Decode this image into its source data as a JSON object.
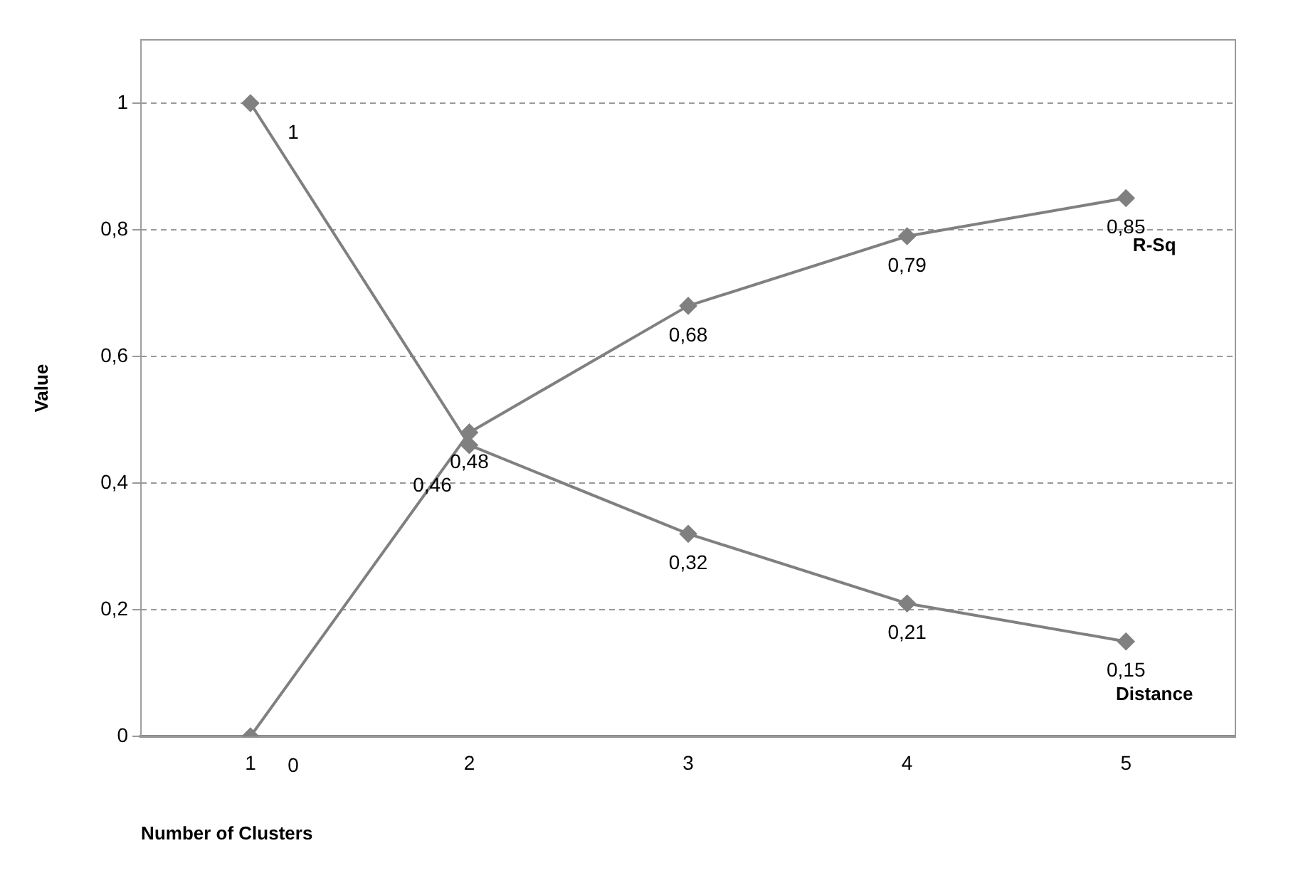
{
  "chart_data": {
    "type": "line",
    "xlabel": "Number of Clusters",
    "ylabel": "Value",
    "categories": [
      "1",
      "2",
      "3",
      "4",
      "5"
    ],
    "series": [
      {
        "name": "Distance",
        "color": "#808080",
        "values": [
          1,
          0.46,
          0.32,
          0.21,
          0.15
        ],
        "value_labels": [
          "1",
          "0,46",
          "0,32",
          "0,21",
          "0,15"
        ]
      },
      {
        "name": "R-Sq",
        "color": "#808080",
        "values": [
          0,
          0.48,
          0.68,
          0.79,
          0.85
        ],
        "value_labels": [
          "0",
          "0,48",
          "0,68",
          "0,79",
          "0,85"
        ]
      }
    ],
    "ylim": [
      0,
      1.1
    ],
    "yticks": [
      {
        "value": 0,
        "label": "0"
      },
      {
        "value": 0.2,
        "label": "0,2"
      },
      {
        "value": 0.4,
        "label": "0,4"
      },
      {
        "value": 0.6,
        "label": "0,6"
      },
      {
        "value": 0.8,
        "label": "0,8"
      },
      {
        "value": 1,
        "label": "1"
      }
    ],
    "grid": "y",
    "legend": false,
    "marker": "diamond",
    "line_style": "solid"
  }
}
